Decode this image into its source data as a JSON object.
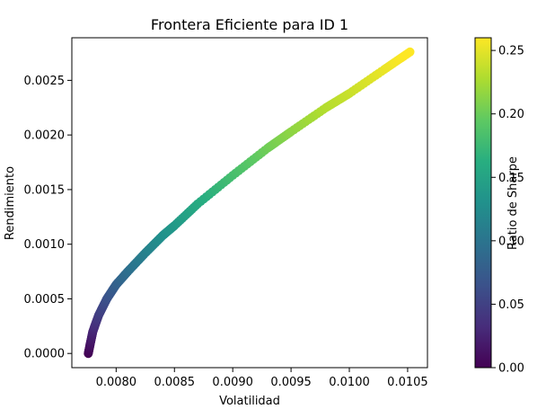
{
  "chart_data": {
    "type": "scatter",
    "title": "Frontera Eficiente para ID 1",
    "xlabel": "Volatilidad",
    "ylabel": "Rendimiento",
    "xlim": [
      0.00762,
      0.01067
    ],
    "ylim": [
      -0.00013,
      0.00289
    ],
    "x_ticks": [
      "0.0080",
      "0.0085",
      "0.0090",
      "0.0095",
      "0.0100",
      "0.0105"
    ],
    "x_tick_values": [
      0.008,
      0.0085,
      0.009,
      0.0095,
      0.01,
      0.0105
    ],
    "y_ticks": [
      "0.0000",
      "0.0005",
      "0.0010",
      "0.0015",
      "0.0020",
      "0.0025"
    ],
    "y_tick_values": [
      0.0,
      0.0005,
      0.001,
      0.0015,
      0.002,
      0.0025
    ],
    "grid": false,
    "colormap": "viridis",
    "colorbar": {
      "label": "Ratio de Sharpe",
      "range": [
        0.0,
        0.26
      ],
      "ticks": [
        "0.00",
        "0.05",
        "0.10",
        "0.15",
        "0.20",
        "0.25"
      ],
      "tick_values": [
        0.0,
        0.05,
        0.1,
        0.15,
        0.2,
        0.25
      ]
    },
    "frontier_points": [
      {
        "x": 0.007761,
        "y": 0.0,
        "sharpe": 0.0
      },
      {
        "x": 0.00778,
        "y": 0.0001,
        "sharpe": 0.013
      },
      {
        "x": 0.0078,
        "y": 0.0002,
        "sharpe": 0.026
      },
      {
        "x": 0.00785,
        "y": 0.00035,
        "sharpe": 0.045
      },
      {
        "x": 0.00792,
        "y": 0.0005,
        "sharpe": 0.063
      },
      {
        "x": 0.008,
        "y": 0.00063,
        "sharpe": 0.079
      },
      {
        "x": 0.0081,
        "y": 0.00075,
        "sharpe": 0.093
      },
      {
        "x": 0.00825,
        "y": 0.00092,
        "sharpe": 0.112
      },
      {
        "x": 0.0084,
        "y": 0.00108,
        "sharpe": 0.129
      },
      {
        "x": 0.0085,
        "y": 0.00117,
        "sharpe": 0.138
      },
      {
        "x": 0.0087,
        "y": 0.00137,
        "sharpe": 0.157
      },
      {
        "x": 0.009,
        "y": 0.00163,
        "sharpe": 0.181
      },
      {
        "x": 0.0093,
        "y": 0.00188,
        "sharpe": 0.202
      },
      {
        "x": 0.0095,
        "y": 0.00203,
        "sharpe": 0.214
      },
      {
        "x": 0.0098,
        "y": 0.00225,
        "sharpe": 0.23
      },
      {
        "x": 0.01,
        "y": 0.00238,
        "sharpe": 0.238
      },
      {
        "x": 0.0103,
        "y": 0.0026,
        "sharpe": 0.252
      },
      {
        "x": 0.01052,
        "y": 0.00276,
        "sharpe": 0.262
      }
    ]
  }
}
